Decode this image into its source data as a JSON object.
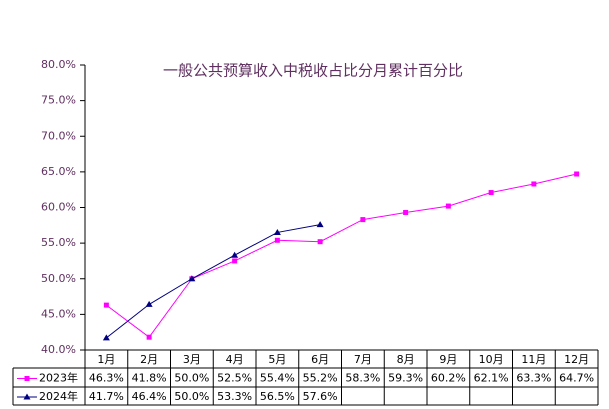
{
  "chart_data": {
    "type": "line",
    "title": "一般公共预算收入中税收占比分月累计百分比",
    "categories": [
      "1月",
      "2月",
      "3月",
      "4月",
      "5月",
      "6月",
      "7月",
      "8月",
      "9月",
      "10月",
      "11月",
      "12月"
    ],
    "series": [
      {
        "name": "2023年",
        "color": "#ff00ff",
        "marker": "square",
        "values": [
          46.3,
          41.8,
          50.0,
          52.5,
          55.4,
          55.2,
          58.3,
          59.3,
          60.2,
          62.1,
          63.3,
          64.7
        ],
        "value_labels": [
          "46.3%",
          "41.8%",
          "50.0%",
          "52.5%",
          "55.4%",
          "55.2%",
          "58.3%",
          "59.3%",
          "60.2%",
          "62.1%",
          "63.3%",
          "64.7%"
        ]
      },
      {
        "name": "2024年",
        "color": "#000080",
        "marker": "triangle",
        "values": [
          41.7,
          46.4,
          50.0,
          53.3,
          56.5,
          57.6,
          null,
          null,
          null,
          null,
          null,
          null
        ],
        "value_labels": [
          "41.7%",
          "46.4%",
          "50.0%",
          "53.3%",
          "56.5%",
          "57.6%",
          null,
          null,
          null,
          null,
          null,
          null
        ]
      }
    ],
    "ylim": [
      40,
      80
    ],
    "yticks": [
      {
        "value": 40,
        "label": "40.0%"
      },
      {
        "value": 45,
        "label": "45.0%"
      },
      {
        "value": 50,
        "label": "50.0%"
      },
      {
        "value": 55,
        "label": "55.0%"
      },
      {
        "value": 60,
        "label": "60.0%"
      },
      {
        "value": 65,
        "label": "65.0%"
      },
      {
        "value": 70,
        "label": "70.0%"
      },
      {
        "value": 75,
        "label": "75.0%"
      },
      {
        "value": 80,
        "label": "80.0%"
      }
    ],
    "grid": false
  }
}
